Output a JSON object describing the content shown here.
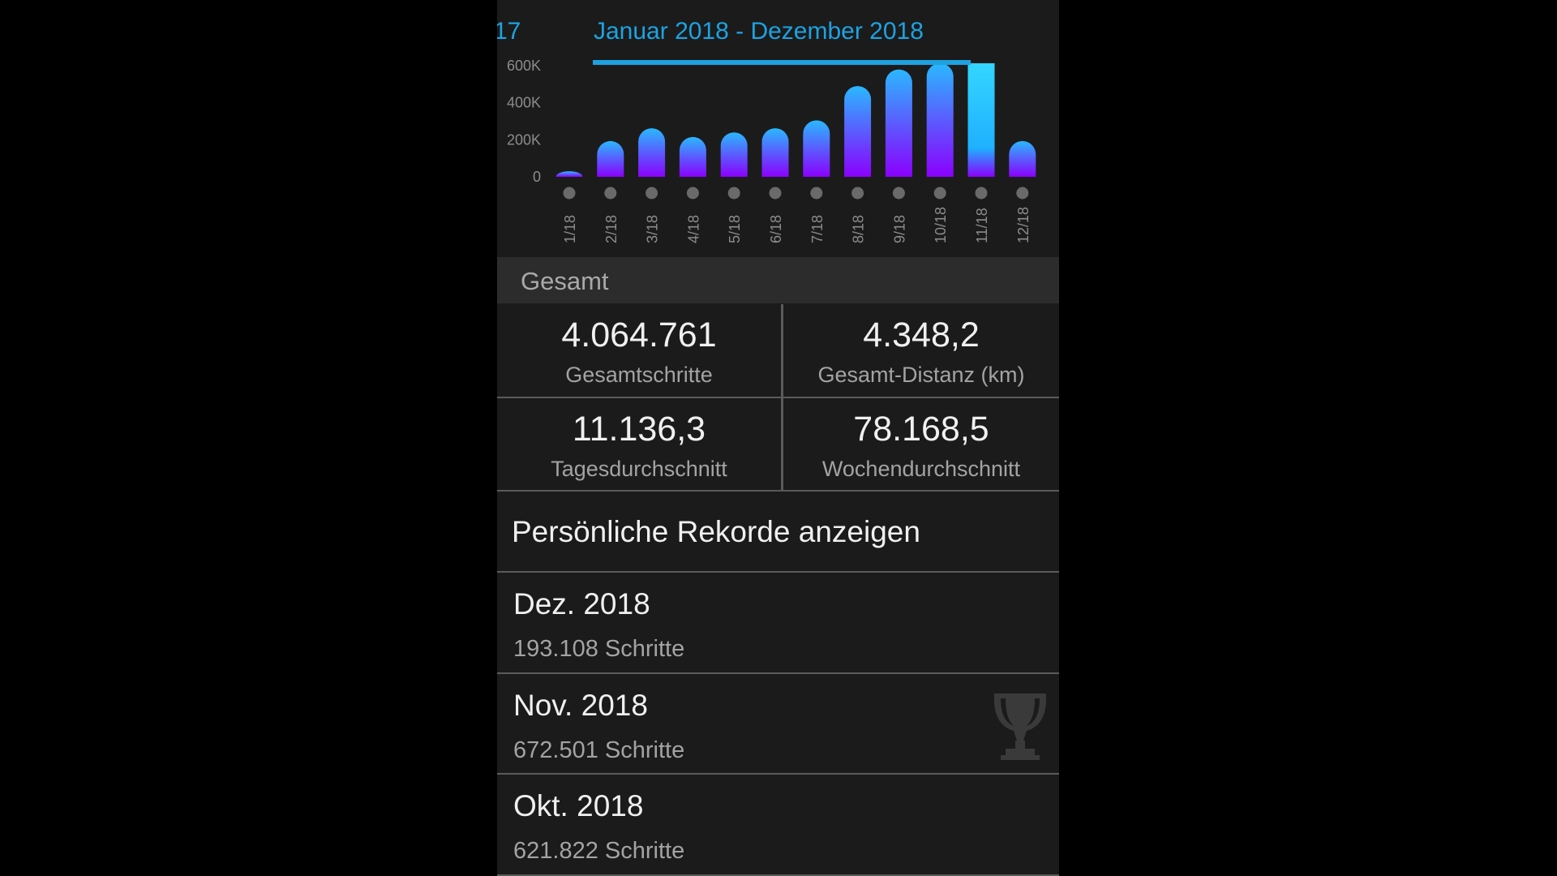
{
  "tabs": {
    "previous_label": "17",
    "active_label": "Januar 2018 - Dezember 2018"
  },
  "chart_data": {
    "type": "bar",
    "categories": [
      "1/18",
      "2/18",
      "3/18",
      "4/18",
      "5/18",
      "6/18",
      "7/18",
      "8/18",
      "9/18",
      "10/18",
      "11/18",
      "12/18"
    ],
    "values": [
      30000,
      193000,
      262000,
      215000,
      240000,
      262000,
      305000,
      490000,
      580000,
      621822,
      672501,
      193108
    ],
    "y_ticks": [
      {
        "value": 0,
        "label": "0"
      },
      {
        "value": 200000,
        "label": "200K"
      },
      {
        "value": 400000,
        "label": "400K"
      },
      {
        "value": 600000,
        "label": "600K"
      }
    ],
    "ylim": [
      0,
      600000
    ],
    "highlighted_category": "11/18",
    "colors": {
      "bar_bottom": "#8b00ff",
      "bar_top": "#2ab8ff",
      "highlight_top": "#33d6ff",
      "highlight_bottom": "#8b00ff",
      "dot": "#6a6a6a",
      "tick_label": "#8c8c8c"
    },
    "xlabel": "",
    "ylabel": ""
  },
  "totals": {
    "section_title": "Gesamt",
    "stats": [
      {
        "value": "4.064.761",
        "label": "Gesamtschritte"
      },
      {
        "value": "4.348,2",
        "label": "Gesamt-Distanz (km)"
      },
      {
        "value": "11.136,3",
        "label": "Tagesdurchschnitt"
      },
      {
        "value": "78.168,5",
        "label": "Wochendurchschnitt"
      }
    ]
  },
  "records_link": "Persönliche Rekorde anzeigen",
  "months": [
    {
      "title": "Dez. 2018",
      "steps": "193.108 Schritte",
      "icon": null
    },
    {
      "title": "Nov. 2018",
      "steps": "672.501 Schritte",
      "icon": "trophy-icon"
    },
    {
      "title": "Okt. 2018",
      "steps": "621.822 Schritte",
      "icon": null
    }
  ]
}
